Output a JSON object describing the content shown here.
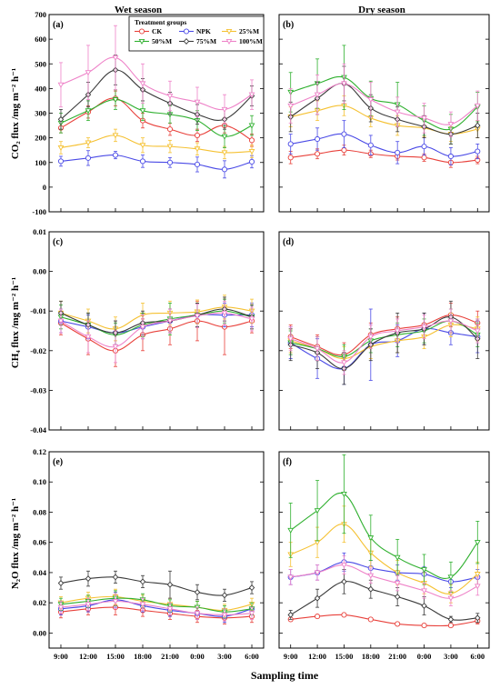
{
  "figure": {
    "col_titles": [
      "Wet season",
      "Dry season"
    ],
    "xlabel": "Sampling time",
    "legend_title": "Treatment groups",
    "row_ylabels": [
      "CO₂ flux /mg m⁻² h⁻¹",
      "CH₄ flux /mg m⁻² h⁻¹",
      "N₂O flux /mg m⁻² h⁻¹"
    ],
    "xticks": [
      "9:00",
      "12:00",
      "15:00",
      "18:00",
      "21:00",
      "0:00",
      "3:00",
      "6:00"
    ]
  },
  "series_style": [
    {
      "name": "CK",
      "color": "#e8403a",
      "marker": "circle"
    },
    {
      "name": "NPK",
      "color": "#4a4ae6",
      "marker": "circle"
    },
    {
      "name": "25%M",
      "color": "#f5c132",
      "marker": "triangle-down"
    },
    {
      "name": "50%M",
      "color": "#2fb02f",
      "marker": "triangle-down"
    },
    {
      "name": "75%M",
      "color": "#3a3a3a",
      "marker": "diamond"
    },
    {
      "name": "100%M",
      "color": "#ee82c8",
      "marker": "triangle-down"
    }
  ],
  "chart_data": [
    {
      "panel": "(a)",
      "type": "line",
      "ylim": [
        -100,
        700
      ],
      "yticks": [
        "-100",
        "0",
        "100",
        "200",
        "300",
        "400",
        "500",
        "600",
        "700"
      ],
      "series": [
        {
          "name": "CK",
          "values": [
            240,
            305,
            360,
            270,
            235,
            210,
            250,
            190
          ],
          "err": [
            20,
            25,
            30,
            30,
            25,
            25,
            30,
            25
          ]
        },
        {
          "name": "NPK",
          "values": [
            105,
            118,
            130,
            105,
            100,
            92,
            72,
            103
          ],
          "err": [
            20,
            30,
            15,
            25,
            20,
            30,
            35,
            25
          ]
        },
        {
          "name": "25%M",
          "values": [
            160,
            180,
            210,
            170,
            165,
            155,
            140,
            145
          ],
          "err": [
            25,
            20,
            25,
            30,
            25,
            25,
            25,
            25
          ]
        },
        {
          "name": "50%M",
          "values": [
            260,
            310,
            355,
            310,
            295,
            270,
            205,
            250
          ],
          "err": [
            40,
            40,
            40,
            40,
            35,
            40,
            45,
            40
          ]
        },
        {
          "name": "75%M",
          "values": [
            275,
            375,
            475,
            395,
            340,
            295,
            275,
            370
          ],
          "err": [
            40,
            50,
            60,
            45,
            45,
            40,
            40,
            40
          ]
        },
        {
          "name": "100%M",
          "values": [
            415,
            465,
            525,
            420,
            370,
            345,
            315,
            375
          ],
          "err": [
            90,
            110,
            130,
            80,
            60,
            60,
            60,
            60
          ]
        }
      ]
    },
    {
      "panel": "(b)",
      "type": "line",
      "ylim": [
        -100,
        700
      ],
      "series": [
        {
          "name": "CK",
          "values": [
            120,
            135,
            150,
            135,
            125,
            120,
            100,
            110
          ],
          "err": [
            25,
            20,
            20,
            15,
            15,
            15,
            20,
            15
          ]
        },
        {
          "name": "NPK",
          "values": [
            175,
            195,
            215,
            170,
            140,
            165,
            125,
            145
          ],
          "err": [
            40,
            45,
            55,
            40,
            45,
            35,
            35,
            30
          ]
        },
        {
          "name": "25%M",
          "values": [
            285,
            310,
            330,
            280,
            250,
            240,
            215,
            235
          ],
          "err": [
            40,
            40,
            40,
            35,
            40,
            35,
            30,
            35
          ]
        },
        {
          "name": "50%M",
          "values": [
            385,
            420,
            445,
            360,
            335,
            270,
            235,
            325
          ],
          "err": [
            80,
            100,
            130,
            70,
            90,
            60,
            60,
            60
          ]
        },
        {
          "name": "75%M",
          "values": [
            285,
            360,
            420,
            320,
            275,
            245,
            215,
            250
          ],
          "err": [
            60,
            65,
            70,
            55,
            50,
            45,
            40,
            50
          ]
        },
        {
          "name": "100%M",
          "values": [
            330,
            375,
            420,
            355,
            305,
            280,
            255,
            330
          ],
          "err": [
            70,
            80,
            80,
            70,
            60,
            60,
            50,
            60
          ]
        }
      ]
    },
    {
      "panel": "(c)",
      "type": "line",
      "ylim": [
        -0.04,
        0.01
      ],
      "yticks": [
        "-0.04",
        "-0.03",
        "-0.02",
        "-0.01",
        "0.00",
        "0.01"
      ],
      "series": [
        {
          "name": "CK",
          "values": [
            -0.013,
            -0.017,
            -0.02,
            -0.016,
            -0.0145,
            -0.0125,
            -0.014,
            -0.0125
          ],
          "err": [
            0.003,
            0.004,
            0.004,
            0.004,
            0.004,
            0.005,
            0.007,
            0.003
          ]
        },
        {
          "name": "NPK",
          "values": [
            -0.0125,
            -0.014,
            -0.0155,
            -0.014,
            -0.0125,
            -0.011,
            -0.011,
            -0.011
          ],
          "err": [
            0.003,
            0.003,
            0.003,
            0.003,
            0.003,
            0.003,
            0.003,
            0.003
          ]
        },
        {
          "name": "25%M",
          "values": [
            -0.0105,
            -0.0125,
            -0.0145,
            -0.011,
            -0.0105,
            -0.0102,
            -0.009,
            -0.01
          ],
          "err": [
            0.003,
            0.003,
            0.003,
            0.003,
            0.003,
            0.003,
            0.003,
            0.003
          ]
        },
        {
          "name": "50%M",
          "values": [
            -0.0115,
            -0.0135,
            -0.016,
            -0.0135,
            -0.012,
            -0.011,
            -0.01,
            -0.0115
          ],
          "err": [
            0.003,
            0.003,
            0.003,
            0.003,
            0.004,
            0.003,
            0.003,
            0.003
          ]
        },
        {
          "name": "75%M",
          "values": [
            -0.0105,
            -0.0135,
            -0.0155,
            -0.013,
            -0.0125,
            -0.011,
            -0.0095,
            -0.0115
          ],
          "err": [
            0.003,
            0.003,
            0.003,
            0.003,
            0.003,
            0.003,
            0.003,
            0.003
          ]
        },
        {
          "name": "100%M",
          "values": [
            -0.0125,
            -0.0165,
            -0.019,
            -0.014,
            -0.0125,
            -0.0112,
            -0.0105,
            -0.012
          ],
          "err": [
            0.003,
            0.004,
            0.004,
            0.003,
            0.003,
            0.003,
            0.003,
            0.003
          ]
        }
      ]
    },
    {
      "panel": "(d)",
      "type": "line",
      "ylim": [
        -0.04,
        0.01
      ],
      "series": [
        {
          "name": "CK",
          "values": [
            -0.0165,
            -0.019,
            -0.021,
            -0.016,
            -0.0145,
            -0.0135,
            -0.011,
            -0.013
          ],
          "err": [
            0.003,
            0.003,
            0.003,
            0.003,
            0.003,
            0.003,
            0.003,
            0.003
          ]
        },
        {
          "name": "NPK",
          "values": [
            -0.018,
            -0.022,
            -0.0245,
            -0.0185,
            -0.0175,
            -0.0145,
            -0.0155,
            -0.0165
          ],
          "err": [
            0.004,
            0.005,
            0.004,
            0.009,
            0.004,
            0.004,
            0.003,
            0.004
          ]
        },
        {
          "name": "25%M",
          "values": [
            -0.0175,
            -0.0195,
            -0.022,
            -0.019,
            -0.0175,
            -0.0165,
            -0.0135,
            -0.0145
          ],
          "err": [
            0.003,
            0.003,
            0.003,
            0.003,
            0.003,
            0.003,
            0.003,
            0.003
          ]
        },
        {
          "name": "50%M",
          "values": [
            -0.018,
            -0.0195,
            -0.0215,
            -0.0175,
            -0.016,
            -0.015,
            -0.0125,
            -0.016
          ],
          "err": [
            0.003,
            0.003,
            0.003,
            0.003,
            0.003,
            0.003,
            0.003,
            0.003
          ]
        },
        {
          "name": "75%M",
          "values": [
            -0.0185,
            -0.0205,
            -0.0245,
            -0.0185,
            -0.0155,
            -0.0145,
            -0.0115,
            -0.017
          ],
          "err": [
            0.004,
            0.004,
            0.004,
            0.004,
            0.005,
            0.004,
            0.004,
            0.005
          ]
        },
        {
          "name": "100%M",
          "values": [
            -0.017,
            -0.0195,
            -0.023,
            -0.0165,
            -0.015,
            -0.014,
            -0.0125,
            -0.015
          ],
          "err": [
            0.003,
            0.003,
            0.003,
            0.003,
            0.003,
            0.003,
            0.003,
            0.003
          ]
        }
      ]
    },
    {
      "panel": "(e)",
      "type": "line",
      "ylim": [
        -0.01,
        0.12
      ],
      "yticks": [
        "0.00",
        "0.02",
        "0.04",
        "0.06",
        "0.08",
        "0.10",
        "0.12"
      ],
      "series": [
        {
          "name": "CK",
          "values": [
            0.014,
            0.016,
            0.017,
            0.015,
            0.013,
            0.011,
            0.01,
            0.011
          ],
          "err": [
            0.004,
            0.004,
            0.005,
            0.004,
            0.004,
            0.004,
            0.004,
            0.004
          ]
        },
        {
          "name": "NPK",
          "values": [
            0.016,
            0.018,
            0.022,
            0.018,
            0.015,
            0.013,
            0.011,
            0.016
          ],
          "err": [
            0.004,
            0.004,
            0.005,
            0.004,
            0.004,
            0.004,
            0.004,
            0.004
          ]
        },
        {
          "name": "25%M",
          "values": [
            0.02,
            0.023,
            0.024,
            0.021,
            0.019,
            0.017,
            0.015,
            0.019
          ],
          "err": [
            0.004,
            0.004,
            0.005,
            0.004,
            0.004,
            0.004,
            0.004,
            0.004
          ]
        },
        {
          "name": "50%M",
          "values": [
            0.019,
            0.021,
            0.023,
            0.022,
            0.018,
            0.017,
            0.014,
            0.016
          ],
          "err": [
            0.004,
            0.004,
            0.005,
            0.004,
            0.004,
            0.004,
            0.004,
            0.004
          ]
        },
        {
          "name": "75%M",
          "values": [
            0.033,
            0.036,
            0.037,
            0.034,
            0.032,
            0.027,
            0.025,
            0.03
          ],
          "err": [
            0.004,
            0.005,
            0.004,
            0.004,
            0.009,
            0.005,
            0.004,
            0.004
          ]
        },
        {
          "name": "100%M",
          "values": [
            0.017,
            0.019,
            0.021,
            0.019,
            0.016,
            0.013,
            0.012,
            0.013
          ],
          "err": [
            0.004,
            0.004,
            0.005,
            0.004,
            0.004,
            0.004,
            0.004,
            0.004
          ]
        }
      ]
    },
    {
      "panel": "(f)",
      "type": "line",
      "ylim": [
        -0.01,
        0.12
      ],
      "series": [
        {
          "name": "CK",
          "values": [
            0.009,
            0.011,
            0.012,
            0.009,
            0.006,
            0.005,
            0.005,
            0.008
          ],
          "err": [
            0.001,
            0.001,
            0.001,
            0.001,
            0.001,
            0.001,
            0.001,
            0.002
          ]
        },
        {
          "name": "NPK",
          "values": [
            0.037,
            0.04,
            0.047,
            0.043,
            0.04,
            0.039,
            0.034,
            0.037
          ],
          "err": [
            0.005,
            0.005,
            0.006,
            0.005,
            0.005,
            0.005,
            0.004,
            0.005
          ]
        },
        {
          "name": "25%M",
          "values": [
            0.052,
            0.06,
            0.072,
            0.053,
            0.04,
            0.033,
            0.026,
            0.039
          ],
          "err": [
            0.008,
            0.01,
            0.012,
            0.009,
            0.008,
            0.007,
            0.006,
            0.008
          ]
        },
        {
          "name": "50%M",
          "values": [
            0.068,
            0.081,
            0.092,
            0.063,
            0.05,
            0.042,
            0.037,
            0.06
          ],
          "err": [
            0.018,
            0.02,
            0.026,
            0.015,
            0.012,
            0.01,
            0.01,
            0.014
          ]
        },
        {
          "name": "75%M",
          "values": [
            0.012,
            0.023,
            0.034,
            0.029,
            0.024,
            0.018,
            0.009,
            0.01
          ],
          "err": [
            0.003,
            0.006,
            0.008,
            0.006,
            0.006,
            0.006,
            0.002,
            0.003
          ]
        },
        {
          "name": "100%M",
          "values": [
            0.037,
            0.04,
            0.045,
            0.038,
            0.033,
            0.028,
            0.023,
            0.031
          ],
          "err": [
            0.005,
            0.005,
            0.006,
            0.005,
            0.005,
            0.005,
            0.005,
            0.006
          ]
        }
      ]
    }
  ]
}
